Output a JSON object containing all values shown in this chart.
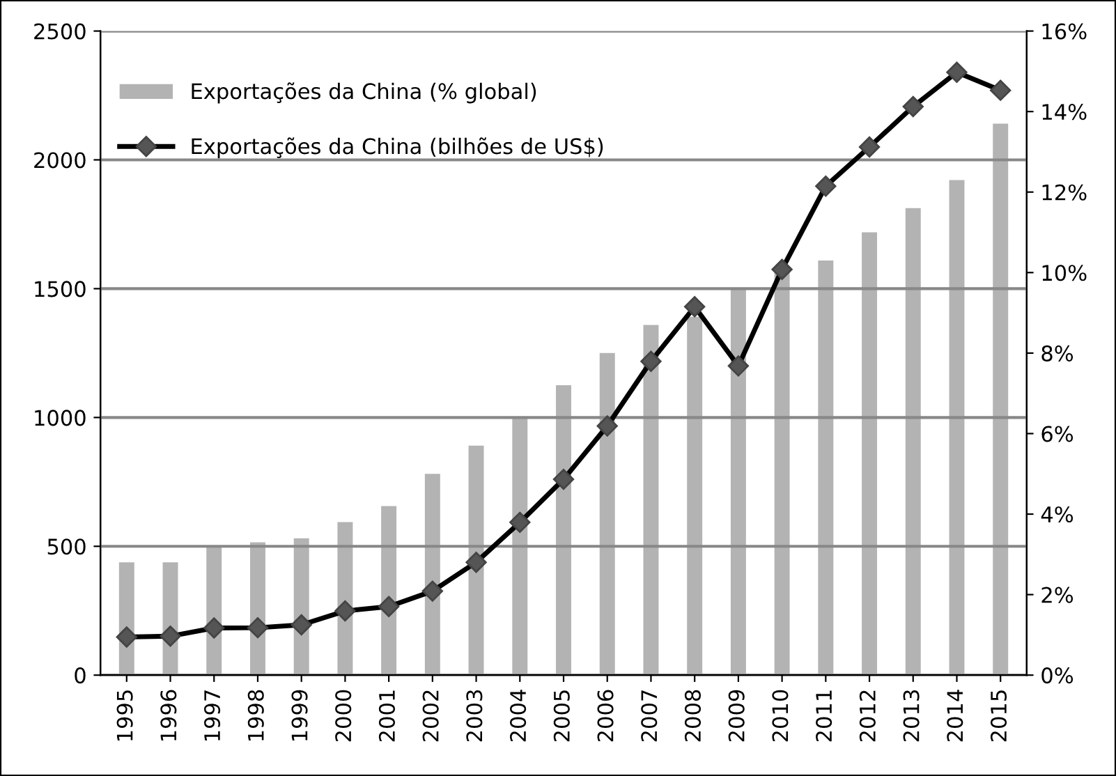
{
  "chart_data": {
    "type": "bar",
    "categories": [
      "1995",
      "1996",
      "1997",
      "1998",
      "1999",
      "2000",
      "2001",
      "2002",
      "2003",
      "2004",
      "2005",
      "2006",
      "2007",
      "2008",
      "2009",
      "2010",
      "2011",
      "2012",
      "2013",
      "2014",
      "2015"
    ],
    "series": [
      {
        "name": "Exportações da China (% global)",
        "axis": "y2",
        "color": "#b3b3b3",
        "values": [
          2.8,
          2.8,
          3.2,
          3.3,
          3.4,
          3.8,
          4.2,
          5.0,
          5.7,
          6.4,
          7.2,
          8.0,
          8.7,
          8.9,
          9.6,
          10.0,
          10.3,
          11.0,
          11.6,
          12.3,
          13.7
        ]
      },
      {
        "name": "Exportações da China (bilhões de US$)",
        "type": "line",
        "axis": "y",
        "color": "#000000",
        "marker": "diamond",
        "values": [
          148,
          151,
          183,
          184,
          195,
          249,
          266,
          326,
          438,
          593,
          760,
          967,
          1218,
          1430,
          1200,
          1575,
          1898,
          2050,
          2207,
          2340,
          2270
        ]
      }
    ],
    "ylim": [
      0,
      2500
    ],
    "yticks": [
      0,
      500,
      1000,
      1500,
      2000,
      2500
    ],
    "y2lim": [
      0,
      16
    ],
    "y2ticks": [
      {
        "value": 0,
        "label": "0%"
      },
      {
        "value": 2,
        "label": "2%"
      },
      {
        "value": 4,
        "label": "4%"
      },
      {
        "value": 6,
        "label": "6%"
      },
      {
        "value": 8,
        "label": "8%"
      },
      {
        "value": 10,
        "label": "10%"
      },
      {
        "value": 12,
        "label": "12%"
      },
      {
        "value": 14,
        "label": "14%"
      },
      {
        "value": 16,
        "label": "16%"
      }
    ],
    "grid": "y",
    "legend": "top left"
  }
}
